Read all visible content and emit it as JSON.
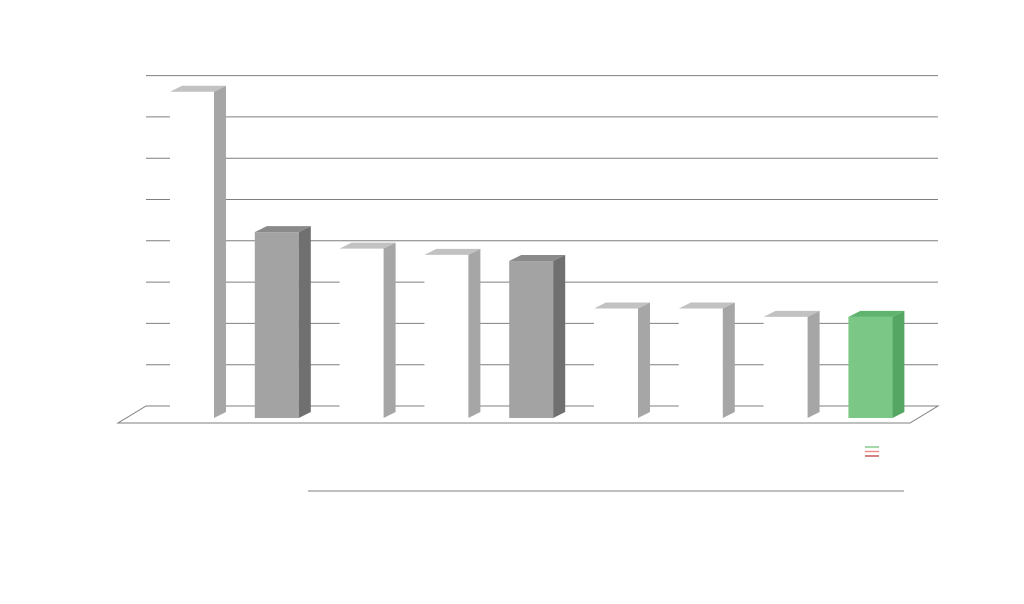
{
  "chart_data": {
    "type": "bar",
    "title": "",
    "xlabel": "",
    "ylabel": "",
    "ylim": [
      0,
      8
    ],
    "grid": true,
    "legend": "bottom-right",
    "categories": [
      "",
      "",
      "",
      "",
      "",
      "",
      "",
      "",
      "",
      ""
    ],
    "values": [
      7.9,
      4.5,
      4.1,
      3.95,
      3.8,
      2.65,
      2.65,
      2.45,
      2.45,
      0
    ],
    "bar_fills": [
      "#ffffff",
      "#a3a3a3",
      "#ffffff",
      "#ffffff",
      "#a3a3a3",
      "#ffffff",
      "#ffffff",
      "#ffffff",
      "#7bc785",
      "#ffffff"
    ],
    "bar_sides": [
      "#a6a6a6",
      "#707070",
      "#a6a6a6",
      "#a6a6a6",
      "#707070",
      "#a6a6a6",
      "#a6a6a6",
      "#a6a6a6",
      "#55a663",
      "#a6a6a6"
    ],
    "bar_tops": [
      "#c2c2c2",
      "#8a8a8a",
      "#c2c2c2",
      "#c2c2c2",
      "#8a8a8a",
      "#c2c2c2",
      "#c2c2c2",
      "#c2c2c2",
      "#5fb36d",
      "#c2c2c2"
    ],
    "legend_colors": [
      "#7bc785",
      "#ef8a80",
      "#c0504d"
    ],
    "grid_color": "#7f7f7f",
    "accent_line_color": "#7f7f7f"
  }
}
